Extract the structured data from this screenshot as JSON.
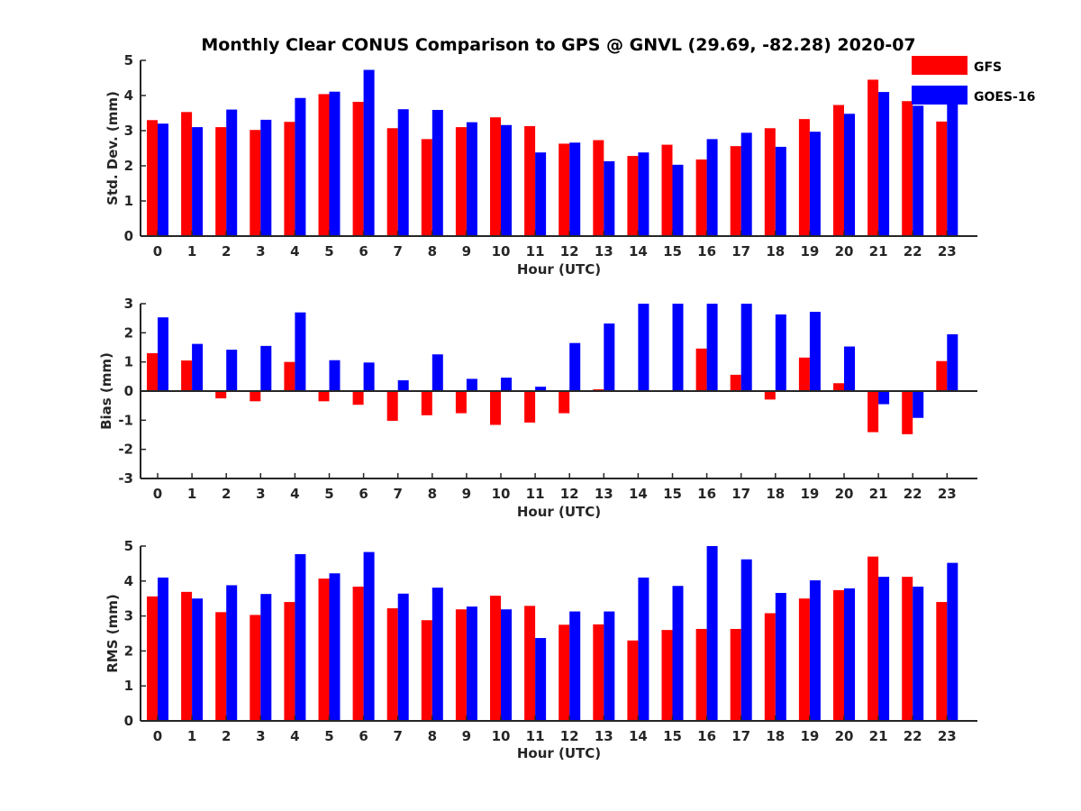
{
  "colors": {
    "GFS": "#ff0000",
    "GOES-16": "#0000ff",
    "axis": "#262626"
  },
  "chart_data": [
    {
      "type": "bar",
      "title": "Monthly Clear CONUS Comparison to GPS @ GNVL (29.69, -82.28) 2020-07",
      "xlabel": "Hour (UTC)",
      "ylabel": "Std. Dev. (mm)",
      "ylim": [
        0,
        5
      ],
      "yticks": [
        0,
        1,
        2,
        3,
        4,
        5
      ],
      "categories": [
        "0",
        "1",
        "2",
        "3",
        "4",
        "5",
        "6",
        "7",
        "8",
        "9",
        "10",
        "11",
        "12",
        "13",
        "14",
        "15",
        "16",
        "17",
        "18",
        "19",
        "20",
        "21",
        "22",
        "23"
      ],
      "legend": {
        "position": "top-right",
        "entries": [
          "GFS",
          "GOES-16"
        ]
      },
      "series": [
        {
          "name": "GFS",
          "color": "#ff0000",
          "values": [
            3.3,
            3.53,
            3.1,
            3.02,
            3.25,
            4.04,
            3.82,
            3.07,
            2.76,
            3.1,
            3.38,
            3.13,
            2.63,
            2.73,
            2.28,
            2.6,
            2.18,
            2.56,
            3.07,
            3.33,
            3.73,
            4.45,
            3.84,
            3.26
          ]
        },
        {
          "name": "GOES-16",
          "color": "#0000ff",
          "values": [
            3.2,
            3.1,
            3.6,
            3.31,
            3.93,
            4.11,
            4.73,
            3.61,
            3.59,
            3.24,
            3.16,
            2.38,
            2.66,
            2.13,
            2.38,
            2.03,
            2.76,
            2.94,
            2.54,
            2.97,
            3.48,
            4.1,
            3.71,
            3.95
          ]
        }
      ]
    },
    {
      "type": "bar",
      "title": "",
      "xlabel": "Hour (UTC)",
      "ylabel": "Bias (mm)",
      "ylim": [
        -3,
        3
      ],
      "yticks": [
        -3,
        -2,
        -1,
        0,
        1,
        2,
        3
      ],
      "categories": [
        "0",
        "1",
        "2",
        "3",
        "4",
        "5",
        "6",
        "7",
        "8",
        "9",
        "10",
        "11",
        "12",
        "13",
        "14",
        "15",
        "16",
        "17",
        "18",
        "19",
        "20",
        "21",
        "22",
        "23"
      ],
      "series": [
        {
          "name": "GFS",
          "color": "#ff0000",
          "values": [
            1.3,
            1.05,
            -0.25,
            -0.35,
            1.0,
            -0.35,
            -0.47,
            -1.02,
            -0.83,
            -0.76,
            -1.16,
            -1.08,
            -0.76,
            0.06,
            0,
            0,
            1.46,
            0.56,
            -0.29,
            1.15,
            0.27,
            -1.41,
            -1.48,
            1.03
          ]
        },
        {
          "name": "GOES-16",
          "color": "#0000ff",
          "values": [
            2.53,
            1.62,
            1.42,
            1.55,
            2.7,
            1.06,
            0.98,
            0.37,
            1.26,
            0.42,
            0.46,
            0.15,
            1.65,
            2.32,
            3.0,
            3.0,
            3.0,
            3.0,
            2.63,
            2.72,
            1.53,
            -0.45,
            -0.92,
            1.95
          ]
        }
      ]
    },
    {
      "type": "bar",
      "title": "",
      "xlabel": "Hour (UTC)",
      "ylabel": "RMS (mm)",
      "ylim": [
        0,
        5
      ],
      "yticks": [
        0,
        1,
        2,
        3,
        4,
        5
      ],
      "categories": [
        "0",
        "1",
        "2",
        "3",
        "4",
        "5",
        "6",
        "7",
        "8",
        "9",
        "10",
        "11",
        "12",
        "13",
        "14",
        "15",
        "16",
        "17",
        "18",
        "19",
        "20",
        "21",
        "22",
        "23"
      ],
      "series": [
        {
          "name": "GFS",
          "color": "#ff0000",
          "values": [
            3.56,
            3.69,
            3.11,
            3.03,
            3.4,
            4.07,
            3.84,
            3.22,
            2.88,
            3.19,
            3.58,
            3.29,
            2.75,
            2.76,
            2.3,
            2.6,
            2.63,
            2.63,
            3.08,
            3.5,
            3.74,
            4.7,
            4.12,
            3.4
          ]
        },
        {
          "name": "GOES-16",
          "color": "#0000ff",
          "values": [
            4.1,
            3.5,
            3.88,
            3.63,
            4.77,
            4.22,
            4.83,
            3.64,
            3.81,
            3.27,
            3.19,
            2.37,
            3.13,
            3.13,
            4.1,
            3.86,
            5.0,
            4.62,
            3.66,
            4.02,
            3.79,
            4.12,
            3.84,
            4.52
          ]
        }
      ]
    }
  ]
}
